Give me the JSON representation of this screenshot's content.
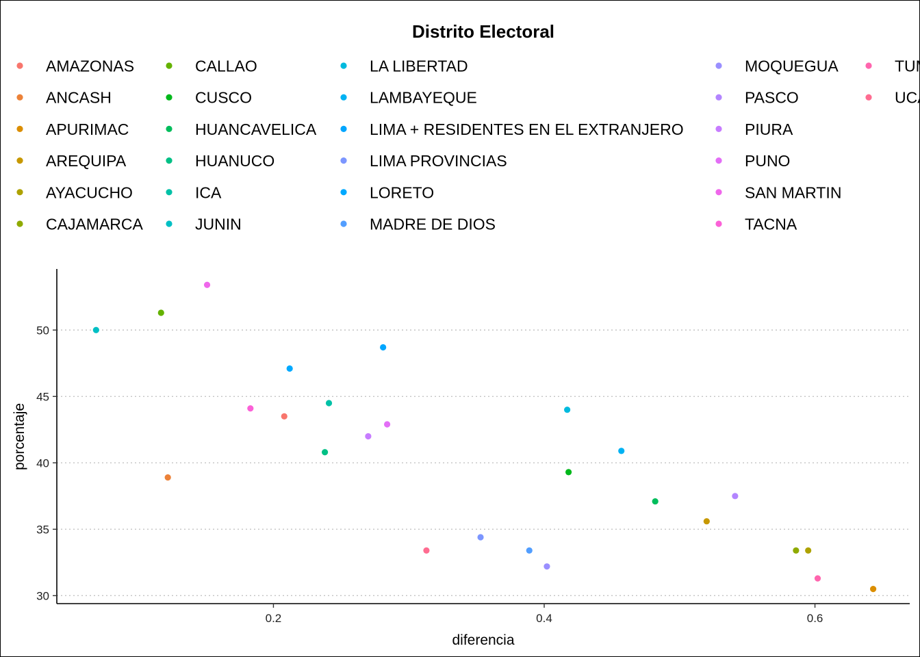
{
  "chart_data": {
    "type": "scatter",
    "xlabel": "diferencia",
    "ylabel": "porcentaje",
    "legend_title": "Distrito Electoral",
    "legend_position": "top",
    "grid": "horizontal dotted major lines",
    "xlim": [
      0.04,
      0.67
    ],
    "ylim": [
      29.4,
      54.6
    ],
    "x_ticks": [
      {
        "value": 0.2,
        "label": "0.2"
      },
      {
        "value": 0.4,
        "label": "0.4"
      },
      {
        "value": 0.6,
        "label": "0.6"
      }
    ],
    "y_ticks": [
      {
        "value": 30,
        "label": "30"
      },
      {
        "value": 35,
        "label": "35"
      },
      {
        "value": 40,
        "label": "40"
      },
      {
        "value": 45,
        "label": "45"
      },
      {
        "value": 50,
        "label": "50"
      }
    ],
    "legend_columns": [
      [
        "AMAZONAS",
        "ANCASH",
        "APURIMAC",
        "AREQUIPA",
        "AYACUCHO",
        "CAJAMARCA"
      ],
      [
        "CALLAO",
        "CUSCO",
        "HUANCAVELICA",
        "HUANUCO",
        "ICA",
        "JUNIN"
      ],
      [
        "LA LIBERTAD",
        "LAMBAYEQUE",
        "LIMA + RESIDENTES EN EL EXTRANJERO",
        "LIMA PROVINCIAS",
        "LORETO",
        "MADRE DE DIOS"
      ],
      [
        "MOQUEGUA",
        "PASCO",
        "PIURA",
        "PUNO",
        "SAN MARTIN",
        "TACNA"
      ],
      [
        "TUMBES",
        "UCAYALI"
      ]
    ],
    "series": [
      {
        "name": "AMAZONAS",
        "color": "#F8766D",
        "x": 0.208,
        "y": 43.5
      },
      {
        "name": "ANCASH",
        "color": "#EC8239",
        "x": 0.122,
        "y": 38.9
      },
      {
        "name": "APURIMAC",
        "color": "#DB8E00",
        "x": 0.643,
        "y": 30.5
      },
      {
        "name": "AREQUIPA",
        "color": "#C79800",
        "x": 0.52,
        "y": 35.6
      },
      {
        "name": "AYACUCHO",
        "color": "#AEA200",
        "x": 0.595,
        "y": 33.4
      },
      {
        "name": "CAJAMARCA",
        "color": "#8FAA00",
        "x": 0.586,
        "y": 33.4
      },
      {
        "name": "CALLAO",
        "color": "#64B200",
        "x": 0.117,
        "y": 51.3
      },
      {
        "name": "CUSCO",
        "color": "#00B81B",
        "x": 0.418,
        "y": 39.3
      },
      {
        "name": "HUANCAVELICA",
        "color": "#00BD5C",
        "x": 0.482,
        "y": 37.1
      },
      {
        "name": "HUANUCO",
        "color": "#00C085",
        "x": 0.238,
        "y": 40.8
      },
      {
        "name": "ICA",
        "color": "#00C1A7",
        "x": 0.241,
        "y": 44.5
      },
      {
        "name": "JUNIN",
        "color": "#00BFC4",
        "x": 0.069,
        "y": 50.0
      },
      {
        "name": "LA LIBERTAD",
        "color": "#00BADE",
        "x": 0.417,
        "y": 44.0
      },
      {
        "name": "LAMBAYEQUE",
        "color": "#00B2F3",
        "x": 0.457,
        "y": 40.9
      },
      {
        "name": "LIMA + RESIDENTES EN EL EXTRANJERO",
        "color": "#00A6FF",
        "x": 0.281,
        "y": 48.7
      },
      {
        "name": "LIMA PROVINCIAS",
        "color": "#7C96FF",
        "x": 0.353,
        "y": 34.4
      },
      {
        "name": "LORETO",
        "color": "#00A9FF",
        "x": 0.212,
        "y": 47.1
      },
      {
        "name": "MADRE DE DIOS",
        "color": "#529EFF",
        "x": 0.389,
        "y": 33.4
      },
      {
        "name": "MOQUEGUA",
        "color": "#9A8FFF",
        "x": 0.402,
        "y": 32.2
      },
      {
        "name": "PASCO",
        "color": "#B385FF",
        "x": 0.541,
        "y": 37.5
      },
      {
        "name": "PIURA",
        "color": "#C77CFF",
        "x": 0.27,
        "y": 42.0
      },
      {
        "name": "PUNO",
        "color": "#E36EF6",
        "x": 0.284,
        "y": 42.9
      },
      {
        "name": "SAN MARTIN",
        "color": "#EF67EB",
        "x": 0.151,
        "y": 53.4
      },
      {
        "name": "TACNA",
        "color": "#FB61D7",
        "x": 0.183,
        "y": 44.1
      },
      {
        "name": "TUMBES",
        "color": "#FF65AE",
        "x": 0.602,
        "y": 31.3
      },
      {
        "name": "UCAYALI",
        "color": "#FF6C91",
        "x": 0.313,
        "y": 33.4
      }
    ]
  }
}
